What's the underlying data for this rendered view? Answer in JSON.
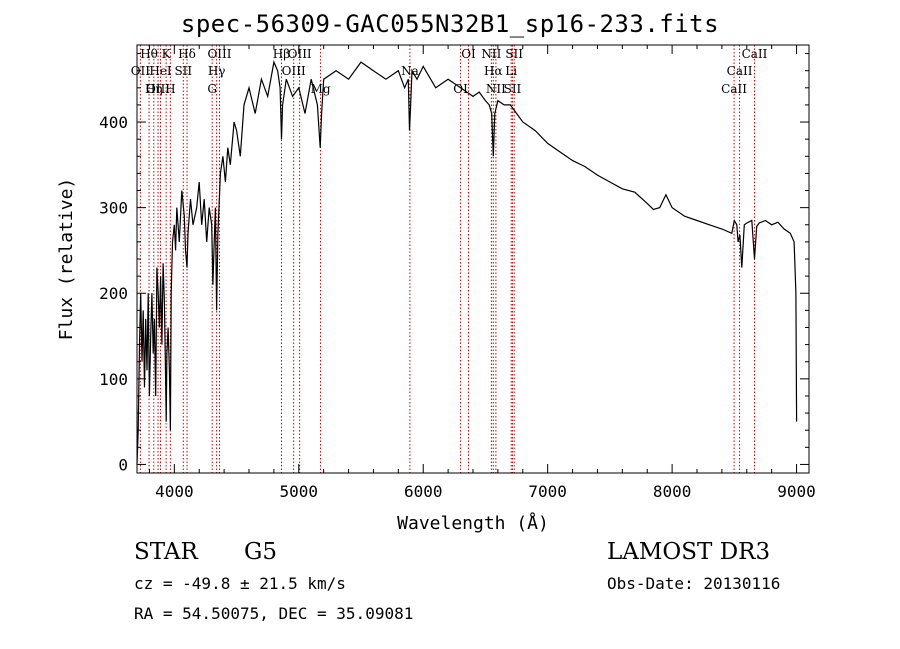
{
  "chart_data": {
    "type": "line",
    "title": "spec-56309-GAC055N32B1_sp16-233.fits",
    "xlabel": "Wavelength (Å)",
    "ylabel": "Flux (relative)",
    "xlim": [
      3700,
      9100
    ],
    "ylim": [
      -10,
      490
    ],
    "xticks": [
      4000,
      5000,
      6000,
      7000,
      8000,
      9000
    ],
    "yticks": [
      0,
      100,
      200,
      300,
      400
    ],
    "series": [
      {
        "name": "spectrum",
        "x": [
          3700,
          3710,
          3720,
          3730,
          3740,
          3750,
          3760,
          3770,
          3780,
          3790,
          3800,
          3810,
          3820,
          3830,
          3840,
          3850,
          3860,
          3870,
          3880,
          3890,
          3900,
          3910,
          3920,
          3930,
          3935,
          3940,
          3950,
          3960,
          3968,
          3975,
          3985,
          4000,
          4010,
          4020,
          4040,
          4060,
          4080,
          4090,
          4102,
          4110,
          4130,
          4150,
          4180,
          4200,
          4220,
          4240,
          4260,
          4280,
          4300,
          4310,
          4320,
          4330,
          4340,
          4350,
          4370,
          4390,
          4410,
          4430,
          4450,
          4480,
          4500,
          4530,
          4560,
          4600,
          4650,
          4700,
          4750,
          4800,
          4830,
          4850,
          4861,
          4870,
          4900,
          4950,
          5000,
          5050,
          5100,
          5150,
          5172,
          5183,
          5200,
          5300,
          5400,
          5500,
          5600,
          5700,
          5800,
          5850,
          5880,
          5890,
          5896,
          5910,
          5950,
          6000,
          6100,
          6200,
          6300,
          6400,
          6450,
          6500,
          6530,
          6550,
          6563,
          6575,
          6600,
          6650,
          6700,
          6750,
          6800,
          6900,
          7000,
          7100,
          7200,
          7300,
          7400,
          7500,
          7600,
          7700,
          7800,
          7850,
          7900,
          7950,
          8000,
          8100,
          8200,
          8300,
          8400,
          8480,
          8500,
          8520,
          8530,
          8545,
          8560,
          8580,
          8600,
          8640,
          8662,
          8680,
          8700,
          8750,
          8800,
          8850,
          8900,
          8950,
          8980,
          8995,
          9000
        ],
        "y": [
          0,
          40,
          140,
          200,
          120,
          180,
          90,
          170,
          110,
          200,
          80,
          150,
          200,
          130,
          170,
          80,
          230,
          200,
          160,
          220,
          140,
          235,
          190,
          100,
          50,
          130,
          160,
          110,
          40,
          200,
          260,
          280,
          250,
          300,
          260,
          320,
          290,
          250,
          230,
          270,
          310,
          280,
          300,
          330,
          280,
          310,
          260,
          300,
          280,
          210,
          260,
          300,
          180,
          270,
          340,
          360,
          330,
          370,
          350,
          400,
          390,
          360,
          420,
          440,
          410,
          450,
          430,
          470,
          460,
          440,
          380,
          420,
          450,
          430,
          440,
          410,
          450,
          420,
          370,
          410,
          450,
          460,
          450,
          470,
          460,
          450,
          460,
          440,
          450,
          390,
          410,
          460,
          450,
          465,
          440,
          450,
          440,
          430,
          435,
          425,
          420,
          410,
          360,
          410,
          425,
          420,
          420,
          410,
          400,
          390,
          375,
          365,
          355,
          348,
          338,
          330,
          322,
          318,
          305,
          298,
          300,
          315,
          300,
          290,
          285,
          280,
          275,
          270,
          285,
          280,
          260,
          268,
          230,
          280,
          282,
          285,
          240,
          278,
          282,
          285,
          280,
          283,
          275,
          270,
          260,
          200,
          50
        ]
      }
    ],
    "lines": [
      {
        "label": "Hθ",
        "x": 3797
      },
      {
        "label": "OII",
        "x": 3727
      },
      {
        "label": "OIII",
        "x": 3869
      },
      {
        "label": "K",
        "x": 3934
      },
      {
        "label": "HeI",
        "x": 3889
      },
      {
        "label": "Hη",
        "x": 3835
      },
      {
        "label": "Hδ",
        "x": 4102
      },
      {
        "label": "SII",
        "x": 4072
      },
      {
        "label": "H",
        "x": 3968
      },
      {
        "label": "OIII",
        "x": 4363
      },
      {
        "label": "Hγ",
        "x": 4340
      },
      {
        "label": "G",
        "x": 4304
      },
      {
        "label": "OIII",
        "x": 5007
      },
      {
        "label": "OIII",
        "x": 4959
      },
      {
        "label": "Mg",
        "x": 5175
      },
      {
        "label": "Hβ",
        "x": 4861
      },
      {
        "label": "Na",
        "x": 5893
      },
      {
        "label": "OI",
        "x": 6300
      },
      {
        "label": "OI",
        "x": 6364
      },
      {
        "label": "Hα",
        "x": 6563
      },
      {
        "label": "SII",
        "x": 6717
      },
      {
        "label": "NII",
        "x": 6548
      },
      {
        "label": "Li",
        "x": 6707
      },
      {
        "label": "NII",
        "x": 6584
      },
      {
        "label": "SII",
        "x": 6731
      },
      {
        "label": "CaII",
        "x": 8542
      },
      {
        "label": "CaII",
        "x": 8498
      },
      {
        "label": "CaII",
        "x": 8662
      }
    ]
  },
  "info": {
    "object_class": "STAR",
    "subclass": "G5",
    "survey": "LAMOST DR3",
    "cz": "cz = -49.8 ± 21.5 km/s",
    "obs_date": "Obs-Date: 20130116",
    "coords": "RA =  54.50075, DEC =  35.09081"
  }
}
